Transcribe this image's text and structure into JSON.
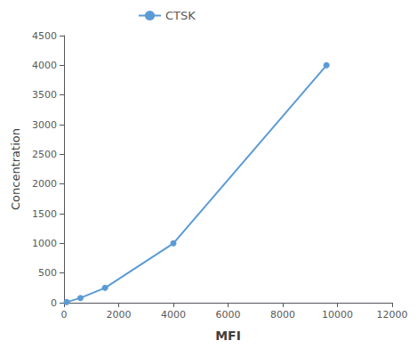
{
  "chart_data": {
    "type": "line",
    "x": [
      100,
      600,
      1500,
      4000,
      9600
    ],
    "series": [
      {
        "name": "CTSK",
        "color": "#5b9bd5",
        "values": [
          10,
          80,
          250,
          1000,
          4000
        ],
        "marker": "circle"
      }
    ],
    "xlabel": "MFI",
    "ylabel": "Concentration",
    "xlim": [
      0,
      12000
    ],
    "ylim": [
      0,
      4500
    ],
    "xticks": [
      0,
      2000,
      4000,
      6000,
      8000,
      10000,
      12000
    ],
    "yticks": [
      0,
      500,
      1000,
      1500,
      2000,
      2500,
      3000,
      3500,
      4000,
      4500
    ],
    "grid": false,
    "legend": "upper left"
  }
}
